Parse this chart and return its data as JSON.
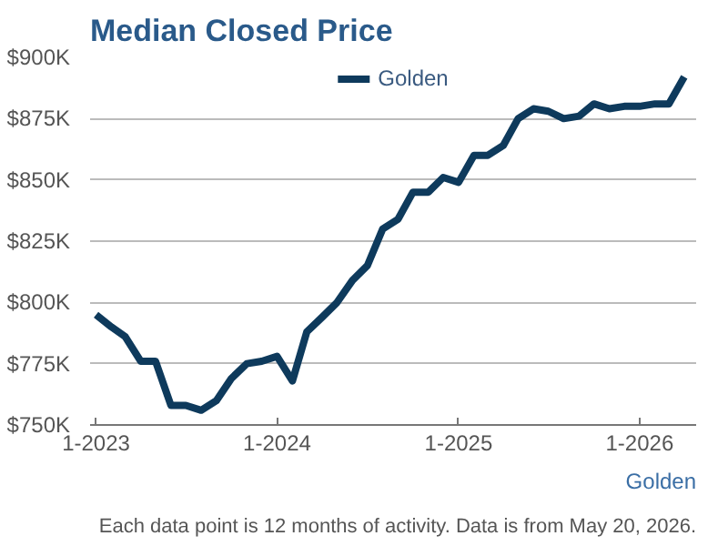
{
  "chart_data": {
    "type": "line",
    "title": "Median Closed Price",
    "x": [
      "2023-01",
      "2023-02",
      "2023-03",
      "2023-04",
      "2023-05",
      "2023-06",
      "2023-07",
      "2023-08",
      "2023-09",
      "2023-10",
      "2023-11",
      "2023-12",
      "2024-01",
      "2024-02",
      "2024-03",
      "2024-04",
      "2024-05",
      "2024-06",
      "2024-07",
      "2024-08",
      "2024-09",
      "2024-10",
      "2024-11",
      "2024-12",
      "2025-01",
      "2025-02",
      "2025-03",
      "2025-04",
      "2025-05",
      "2025-06",
      "2025-07",
      "2025-08",
      "2025-09",
      "2025-10",
      "2025-11",
      "2025-12",
      "2026-01",
      "2026-02",
      "2026-03",
      "2026-04"
    ],
    "series": [
      {
        "name": "Golden",
        "color": "#0e3a5c",
        "values": [
          795000,
          790000,
          786000,
          776000,
          776000,
          758000,
          758000,
          756000,
          760000,
          769000,
          775000,
          776000,
          778000,
          768000,
          788000,
          794000,
          800000,
          809000,
          815000,
          830000,
          834000,
          845000,
          845000,
          851000,
          849000,
          860000,
          860000,
          864000,
          875000,
          879000,
          878000,
          875000,
          876000,
          881000,
          879000,
          880000,
          880000,
          881000,
          881000,
          892000
        ]
      }
    ],
    "xlim": [
      "2022-12-20",
      "2026-04-25"
    ],
    "xticks": [
      {
        "value": "2023-01",
        "label": "1-2023"
      },
      {
        "value": "2024-01",
        "label": "1-2024"
      },
      {
        "value": "2025-01",
        "label": "1-2025"
      },
      {
        "value": "2026-01",
        "label": "1-2026"
      }
    ],
    "ylim": [
      750000,
      900000
    ],
    "yticks": [
      {
        "value": 750000,
        "label": "$750K"
      },
      {
        "value": 775000,
        "label": "$775K"
      },
      {
        "value": 800000,
        "label": "$800K"
      },
      {
        "value": 825000,
        "label": "$825K"
      },
      {
        "value": 850000,
        "label": "$850K"
      },
      {
        "value": 875000,
        "label": "$875K"
      },
      {
        "value": 900000,
        "label": "$900K"
      }
    ],
    "grid": "y",
    "legend": "top",
    "marker": "none",
    "line_style": "solid",
    "annotations": [
      "Golden",
      "Each data point is 12 months of activity. Data is from May 20, 2026."
    ]
  }
}
